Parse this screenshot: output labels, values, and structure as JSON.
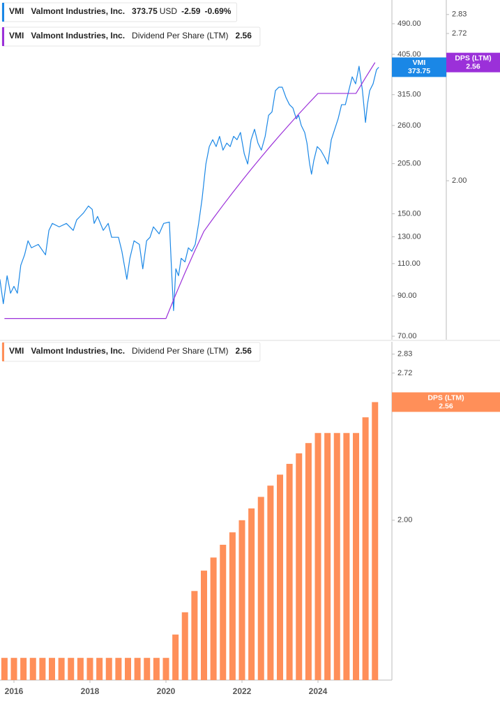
{
  "chart_data": [
    {
      "type": "line",
      "log_scale": true,
      "xlim": [
        2015.633,
        2025.945
      ],
      "ylim": [
        68.5,
        568
      ],
      "yticks": [
        {
          "value": 490,
          "label": "490.00"
        },
        {
          "value": 405,
          "label": "405.00"
        },
        {
          "value": 315,
          "label": "315.00"
        },
        {
          "value": 260,
          "label": "260.00"
        },
        {
          "value": 205,
          "label": "205.00"
        },
        {
          "value": 150,
          "label": "150.00"
        },
        {
          "value": 130,
          "label": "130.00"
        },
        {
          "value": 110,
          "label": "110.00"
        },
        {
          "value": 90,
          "label": "90.00"
        },
        {
          "value": 70,
          "label": "70.00"
        }
      ],
      "y2lim": [
        1.435,
        2.917
      ],
      "y2ticks": [
        2.83,
        2.72,
        {
          "value": 2,
          "label": "2.00"
        }
      ],
      "series": [
        {
          "name": "Valmont Industries, Inc.",
          "ticker": "VMI",
          "currency": "USD",
          "change": "-2.59",
          "change_percent": "-0.69%",
          "color": "#1a87e6",
          "x": [
            2015.63,
            2015.72,
            2015.82,
            2015.91,
            2016.0,
            2016.09,
            2016.18,
            2016.28,
            2016.37,
            2016.46,
            2016.64,
            2016.83,
            2016.92,
            2017.01,
            2017.19,
            2017.38,
            2017.56,
            2017.65,
            2017.74,
            2017.83,
            2017.96,
            2018.06,
            2018.11,
            2018.2,
            2018.35,
            2018.48,
            2018.57,
            2018.75,
            2018.84,
            2018.97,
            2019.05,
            2019.16,
            2019.3,
            2019.39,
            2019.49,
            2019.58,
            2019.67,
            2019.82,
            2019.94,
            2020.09,
            2020.15,
            2020.2,
            2020.26,
            2020.33,
            2020.4,
            2020.5,
            2020.59,
            2020.68,
            2020.77,
            2020.86,
            2020.95,
            2021.05,
            2021.14,
            2021.23,
            2021.32,
            2021.41,
            2021.5,
            2021.6,
            2021.69,
            2021.78,
            2021.87,
            2021.96,
            2022.06,
            2022.15,
            2022.24,
            2022.33,
            2022.42,
            2022.51,
            2022.61,
            2022.7,
            2022.79,
            2022.88,
            2022.97,
            2023.06,
            2023.16,
            2023.25,
            2023.34,
            2023.43,
            2023.49,
            2023.56,
            2023.65,
            2023.71,
            2023.78,
            2023.83,
            2023.89,
            2023.98,
            2024.07,
            2024.17,
            2024.26,
            2024.35,
            2024.44,
            2024.53,
            2024.62,
            2024.72,
            2024.81,
            2024.9,
            2024.99,
            2025.08,
            2025.17,
            2025.25,
            2025.3,
            2025.36,
            2025.45,
            2025.54,
            2025.6
          ],
          "values": [
            99.8,
            85.7,
            102,
            91.5,
            95.5,
            91.5,
            108.9,
            116.2,
            126.8,
            121.4,
            124,
            116.2,
            135.3,
            141.3,
            138.3,
            141.3,
            135.3,
            144.4,
            147.6,
            150.8,
            157.5,
            154.2,
            141.3,
            147.6,
            135.3,
            141.3,
            129.6,
            129.6,
            118.8,
            99.8,
            113.7,
            126.8,
            124,
            106.5,
            126.8,
            129.6,
            138.3,
            132.4,
            141.3,
            142.5,
            104.2,
            82.1,
            106.5,
            102,
            113.7,
            111.2,
            121.4,
            118.8,
            124,
            141.3,
            164.6,
            204.5,
            228,
            238,
            228,
            243,
            223,
            233,
            228,
            243,
            238,
            249,
            218,
            204.5,
            238,
            254,
            233,
            223,
            243,
            277,
            283,
            323,
            330,
            330,
            309,
            296,
            290,
            271,
            277,
            260,
            249,
            233,
            204.5,
            192,
            209,
            228,
            223,
            214,
            204.5,
            238,
            254,
            271,
            296,
            296,
            323,
            352,
            337,
            376,
            323,
            265,
            296,
            323,
            337,
            368,
            373.75
          ]
        },
        {
          "name": "Dividend Per Share (LTM)",
          "short_name": "DPS (LTM)",
          "color": "#9b30d9",
          "axis": "y2",
          "x": [
            2015.75,
            2016,
            2016.25,
            2016.5,
            2016.75,
            2017,
            2017.25,
            2017.5,
            2017.75,
            2018,
            2018.25,
            2018.5,
            2018.75,
            2019,
            2019.25,
            2019.5,
            2019.75,
            2020,
            2020.25,
            2020.5,
            2020.75,
            2021,
            2021.25,
            2021.5,
            2021.75,
            2022,
            2022.25,
            2022.5,
            2022.75,
            2023,
            2023.25,
            2023.5,
            2023.75,
            2024,
            2024.25,
            2024.5,
            2024.75,
            2025,
            2025.25,
            2025.5
          ],
          "values": [
            1.5,
            1.5,
            1.5,
            1.5,
            1.5,
            1.5,
            1.5,
            1.5,
            1.5,
            1.5,
            1.5,
            1.5,
            1.5,
            1.5,
            1.5,
            1.5,
            1.5,
            1.5,
            1.575,
            1.65,
            1.725,
            1.8,
            1.85,
            1.9,
            1.95,
            2.0,
            2.05,
            2.1,
            2.15,
            2.2,
            2.25,
            2.3,
            2.35,
            2.4,
            2.4,
            2.4,
            2.4,
            2.4,
            2.48,
            2.56
          ]
        }
      ]
    },
    {
      "type": "bar",
      "log_scale": true,
      "name": "Dividend Per Share (LTM)",
      "short_name": "DPS (LTM)",
      "color": "#ff8f59",
      "xlim": [
        2015.633,
        2025.945
      ],
      "xticks": [
        2016,
        2018,
        2020,
        2022,
        2024
      ],
      "ylim": [
        1.432,
        2.904
      ],
      "yticks": [
        2.83,
        2.72,
        {
          "value": 2,
          "label": "2.00"
        }
      ],
      "x": [
        2015.75,
        2016,
        2016.25,
        2016.5,
        2016.75,
        2017,
        2017.25,
        2017.5,
        2017.75,
        2018,
        2018.25,
        2018.5,
        2018.75,
        2019,
        2019.25,
        2019.5,
        2019.75,
        2020,
        2020.25,
        2020.5,
        2020.75,
        2021,
        2021.25,
        2021.5,
        2021.75,
        2022,
        2022.25,
        2022.5,
        2022.75,
        2023,
        2023.25,
        2023.5,
        2023.75,
        2024,
        2024.25,
        2024.5,
        2024.75,
        2025,
        2025.25,
        2025.5
      ],
      "values": [
        1.5,
        1.5,
        1.5,
        1.5,
        1.5,
        1.5,
        1.5,
        1.5,
        1.5,
        1.5,
        1.5,
        1.5,
        1.5,
        1.5,
        1.5,
        1.5,
        1.5,
        1.5,
        1.575,
        1.65,
        1.725,
        1.8,
        1.85,
        1.9,
        1.95,
        2.0,
        2.05,
        2.1,
        2.15,
        2.2,
        2.25,
        2.3,
        2.35,
        2.4,
        2.4,
        2.4,
        2.4,
        2.4,
        2.48,
        2.56
      ]
    }
  ]
}
